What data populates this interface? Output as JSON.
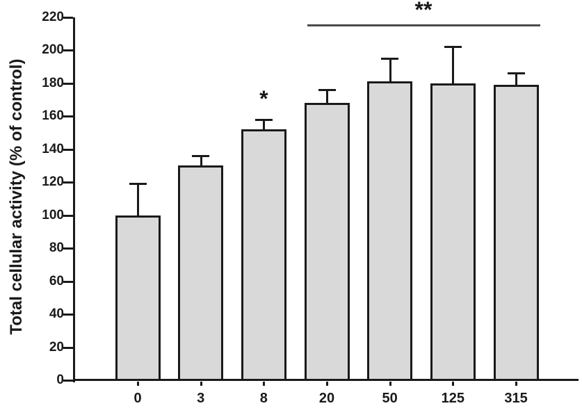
{
  "figure": {
    "background": "#ffffff"
  },
  "chart_data": {
    "type": "bar",
    "title": "",
    "xlabel": "",
    "ylabel": "Total cellular activity (% of control)",
    "categories": [
      "0",
      "3",
      "8",
      "20",
      "50",
      "125",
      "315"
    ],
    "values": [
      100,
      130,
      152,
      168,
      181,
      180,
      179
    ],
    "errors_plus": [
      19,
      6,
      6,
      8,
      14,
      22,
      7
    ],
    "ylim": [
      0,
      220
    ],
    "ytick_step": 20,
    "grid": "off",
    "legend": "none",
    "bar_fill": "#d9d9d9",
    "bar_stroke": "#1a1a1a",
    "text_color": "#1a1a1a",
    "sig_line_color": "#4a4a4a",
    "annotations": [
      {
        "type": "star",
        "label": "*",
        "category": "8"
      },
      {
        "type": "bracket-line",
        "label": "**",
        "from_category": "20",
        "to_category": "315"
      }
    ]
  }
}
